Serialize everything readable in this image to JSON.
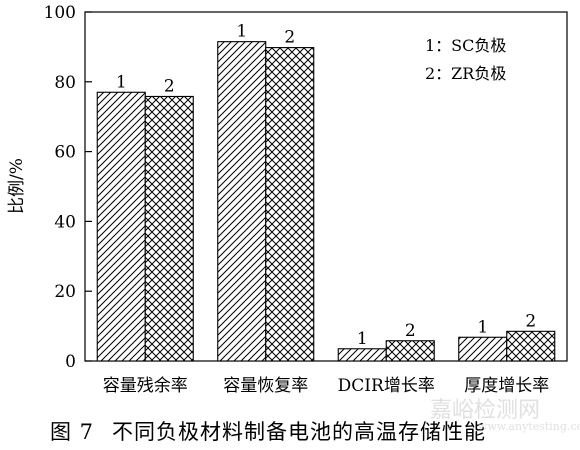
{
  "chart_data": {
    "type": "bar",
    "categories": [
      "容量残余率",
      "容量恢复率",
      "DCIR增长率",
      "厚度增长率"
    ],
    "series": [
      {
        "name": "SC负极",
        "marker": "1",
        "pattern": "diagonal",
        "values": [
          77.0,
          91.5,
          3.5,
          6.8
        ]
      },
      {
        "name": "ZR负极",
        "marker": "2",
        "pattern": "crosshatch",
        "values": [
          75.8,
          89.8,
          5.8,
          8.5
        ]
      }
    ],
    "ylabel": "比例/%",
    "xlabel": "",
    "ylim": [
      0,
      100
    ],
    "yticks": [
      0,
      20,
      40,
      60,
      80,
      100
    ],
    "legend": {
      "placement": "top-right",
      "entries": [
        "1：SC负极",
        "2：ZR负极"
      ]
    },
    "grid": false
  },
  "caption": {
    "figure_number": "图 7",
    "text": "不同负极材料制备电池的高温存储性能"
  },
  "watermark": {
    "text": "嘉峪检测网",
    "url": "www.anytesting.com"
  }
}
